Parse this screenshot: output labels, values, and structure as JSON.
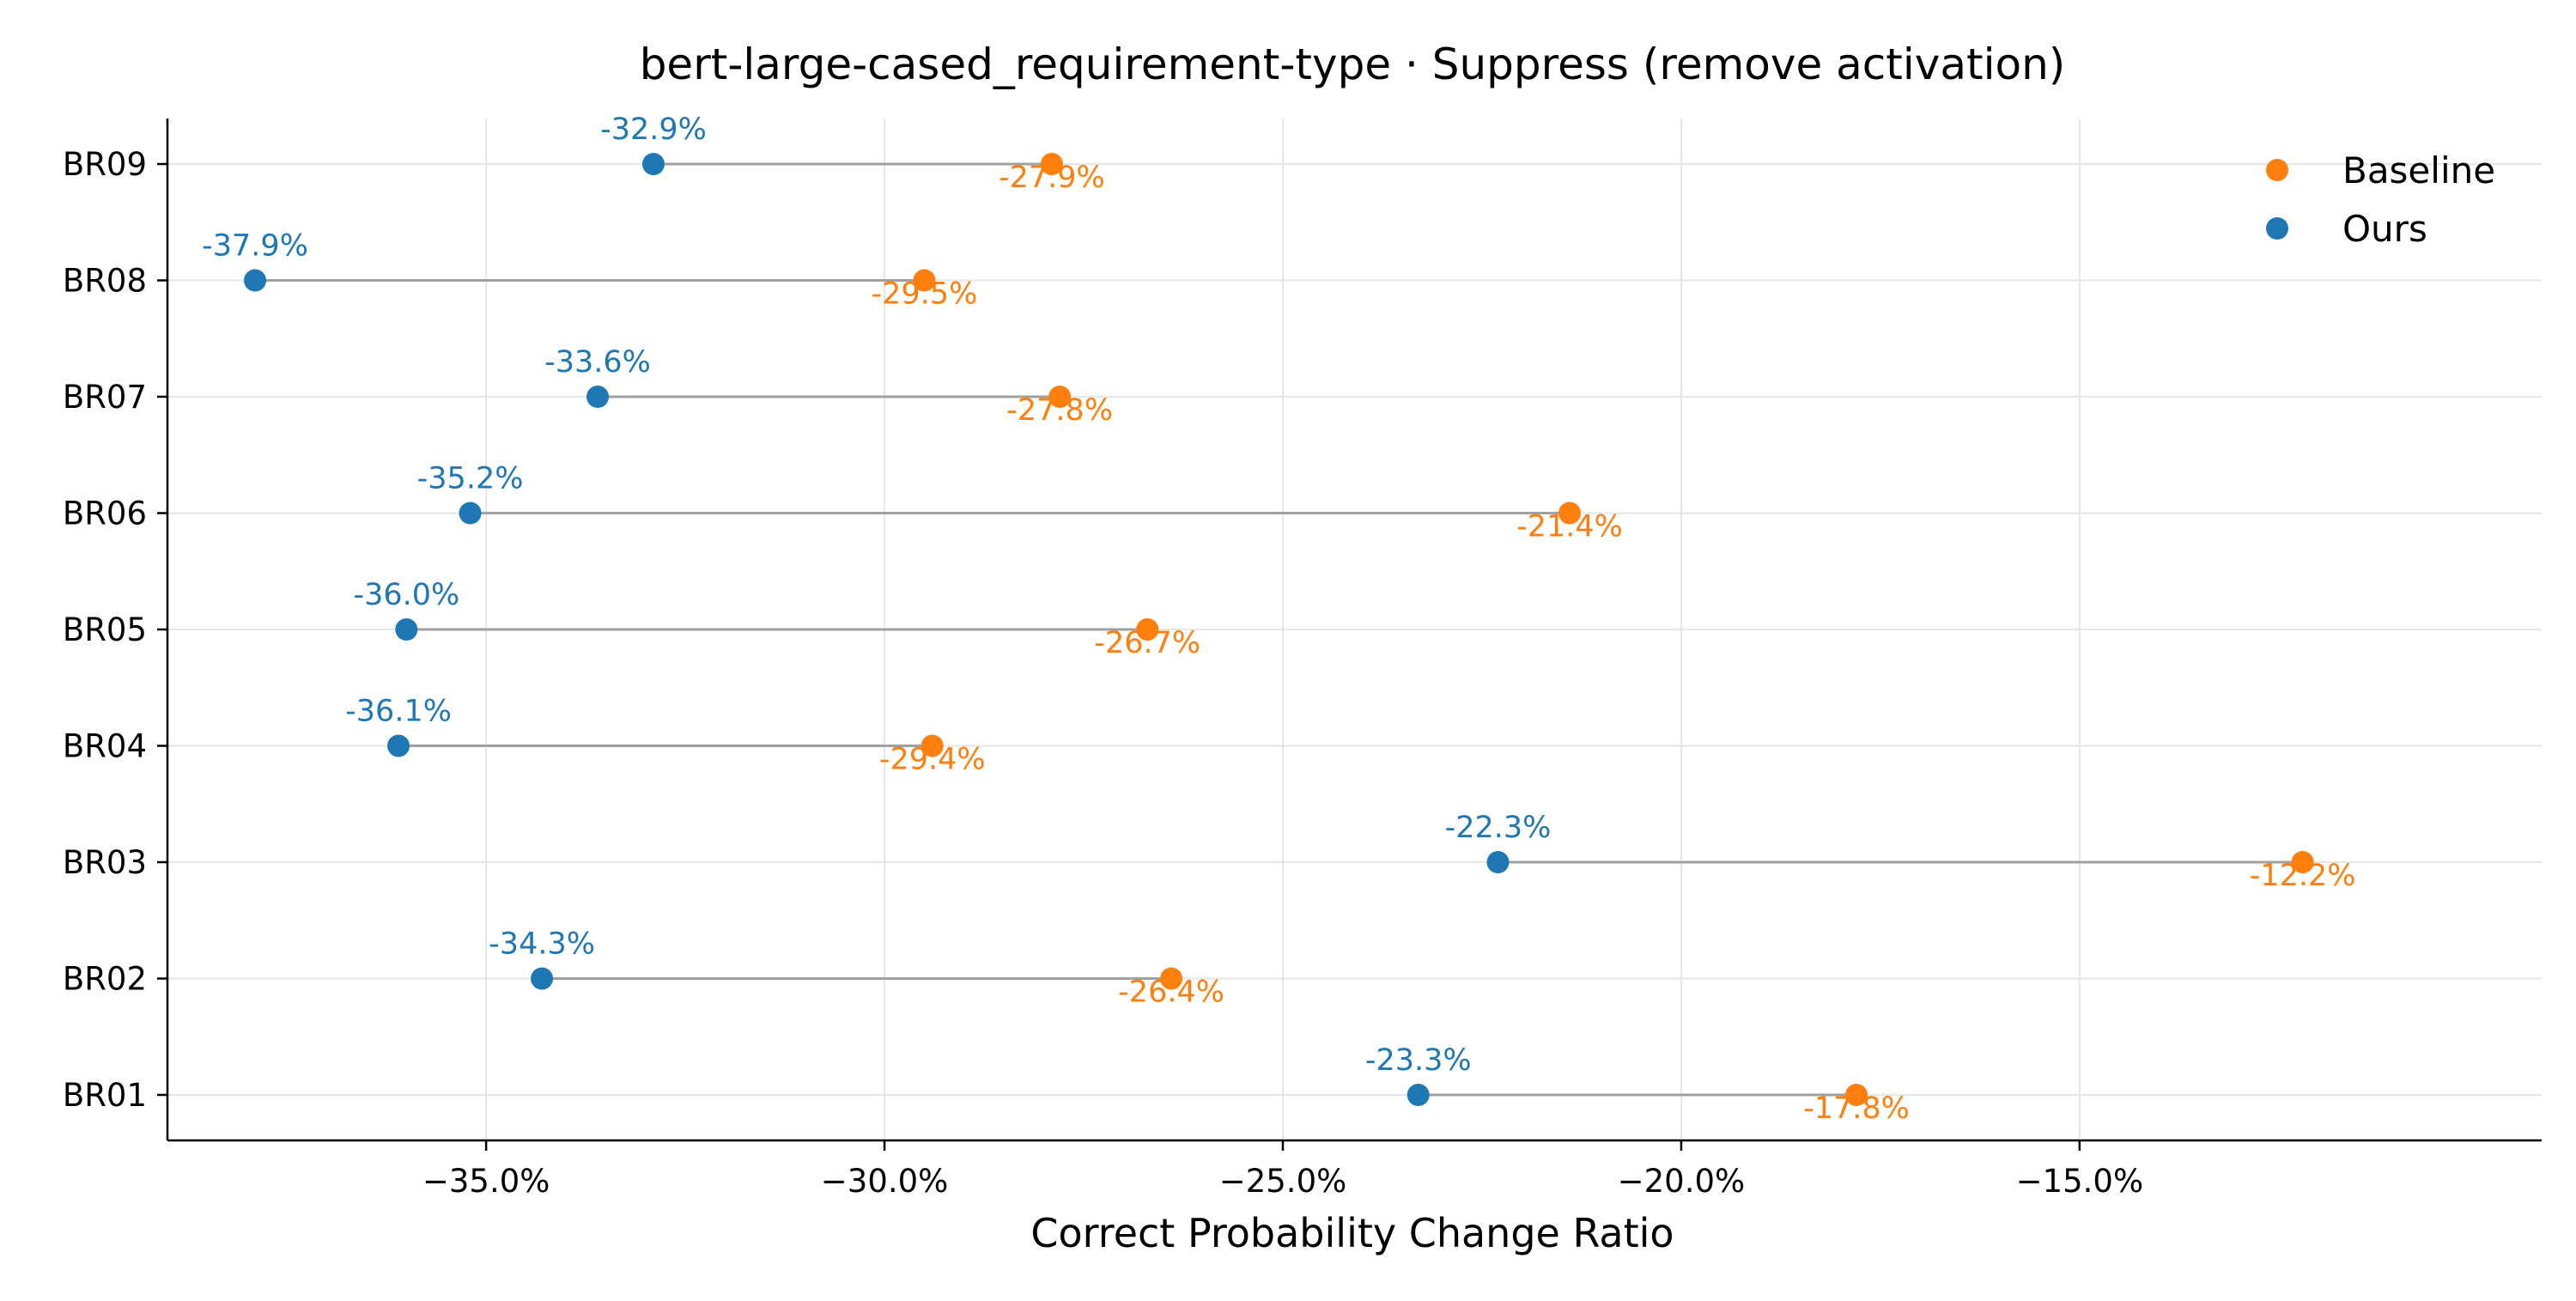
{
  "chart_data": {
    "type": "scatter",
    "subtype": "dumbbell",
    "title": "bert-large-cased_requirement-type · Suppress (remove activation)",
    "xlabel": "Correct Probability Change Ratio",
    "ylabel": "",
    "xlim": [
      -39.0,
      -9.2
    ],
    "x_ticks": [
      -35.0,
      -30.0,
      -25.0,
      -20.0,
      -15.0
    ],
    "x_tick_labels": [
      "−35.0%",
      "−30.0%",
      "−25.0%",
      "−20.0%",
      "−15.0%"
    ],
    "categories": [
      "BR01",
      "BR02",
      "BR03",
      "BR04",
      "BR05",
      "BR06",
      "BR07",
      "BR08",
      "BR09"
    ],
    "series": [
      {
        "name": "Baseline",
        "color": "#ff7f0e",
        "values": [
          -17.8,
          -26.4,
          -12.2,
          -29.4,
          -26.7,
          -21.4,
          -27.8,
          -29.5,
          -27.9
        ],
        "labels": [
          "-17.8%",
          "-26.4%",
          "-12.2%",
          "-29.4%",
          "-26.7%",
          "-21.4%",
          "-27.8%",
          "-29.5%",
          "-27.9%"
        ]
      },
      {
        "name": "Ours",
        "color": "#1f77b4",
        "values": [
          -23.3,
          -34.3,
          -22.3,
          -36.1,
          -36.0,
          -35.2,
          -33.6,
          -37.9,
          -32.9
        ],
        "labels": [
          "-23.3%",
          "-34.3%",
          "-22.3%",
          "-36.1%",
          "-36.0%",
          "-35.2%",
          "-33.6%",
          "-37.9%",
          "-32.9%"
        ]
      }
    ],
    "connector_color": "#a0a0a0",
    "grid": true,
    "legend_position": "top-right"
  }
}
